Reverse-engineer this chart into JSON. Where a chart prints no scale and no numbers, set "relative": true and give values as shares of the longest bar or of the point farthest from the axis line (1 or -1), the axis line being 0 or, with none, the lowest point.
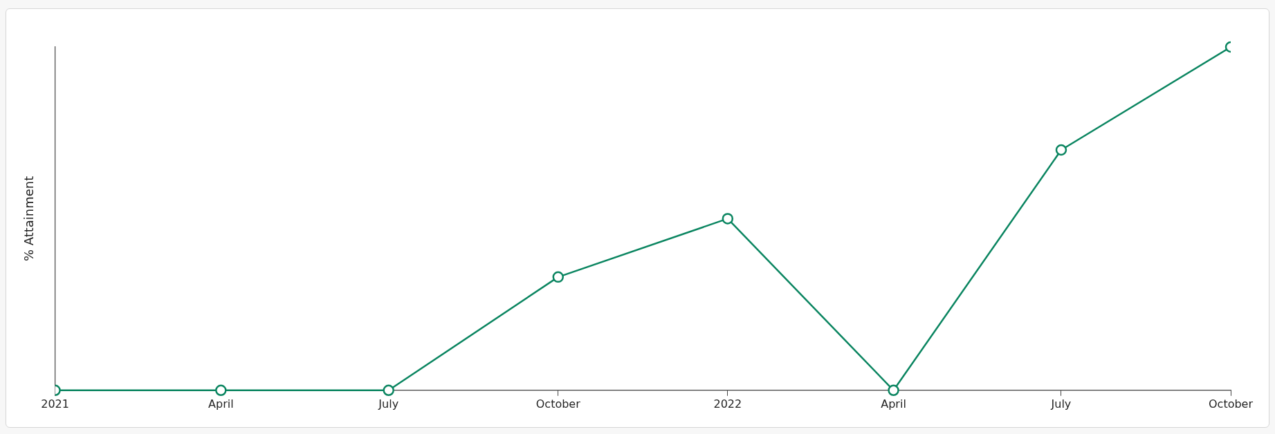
{
  "chart_data": {
    "type": "line",
    "ylabel": "% Attainment",
    "relative": true,
    "x": [
      "2021-01",
      "2021-04",
      "2021-07",
      "2021-10",
      "2022-01",
      "2022-04",
      "2022-07",
      "2022-10"
    ],
    "series": [
      {
        "color": "#0a8560",
        "values": [
          0,
          0,
          0,
          0.33,
          0.5,
          0,
          0.7,
          1
        ]
      }
    ],
    "xlim": [
      "2021-01",
      "2022-10"
    ],
    "xticks": [
      {
        "value": "2021-01",
        "label": "2021"
      },
      {
        "value": "2021-04",
        "label": "April"
      },
      {
        "value": "2021-07",
        "label": "July"
      },
      {
        "value": "2021-10",
        "label": "October"
      },
      {
        "value": "2022-01",
        "label": "2022"
      },
      {
        "value": "2022-04",
        "label": "April"
      },
      {
        "value": "2022-07",
        "label": "July"
      },
      {
        "value": "2022-10",
        "label": "October"
      }
    ],
    "grid": false,
    "legend": false,
    "marker": "circle",
    "line_style": "solid"
  }
}
